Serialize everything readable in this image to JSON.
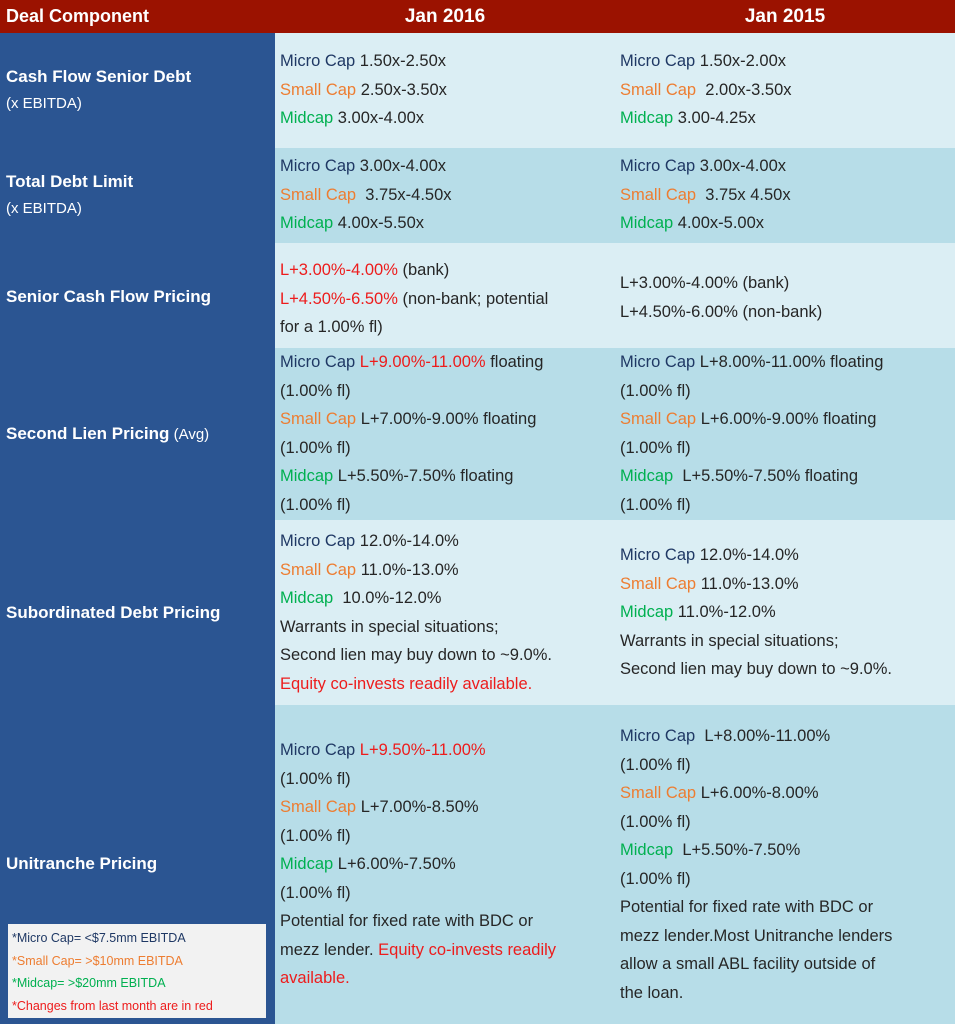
{
  "header": {
    "col0": "Deal Component",
    "col1": "Jan 2016",
    "col2": "Jan 2015"
  },
  "rows": {
    "cashflow": {
      "label": "Cash Flow Senior Debt",
      "sub": "(x EBITDA)",
      "y2016": {
        "micro_lbl": "Micro Cap",
        "micro_val": " 1.50x-2.50x",
        "small_lbl": "Small Cap",
        "small_val": " 2.50x-3.50x",
        "mid_lbl": "Midcap",
        "mid_val": " 3.00x-4.00x"
      },
      "y2015": {
        "micro_lbl": "Micro Cap",
        "micro_val": " 1.50x-2.00x",
        "small_lbl": "Small Cap",
        "small_val": "  2.00x-3.50x",
        "mid_lbl": "Midcap",
        "mid_val": " 3.00-4.25x"
      }
    },
    "totaldebt": {
      "label": "Total Debt Limit",
      "sub": "(x EBITDA)",
      "y2016": {
        "micro_lbl": "Micro Cap",
        "micro_val": " 3.00x-4.00x",
        "small_lbl": "Small Cap",
        "small_val": "  3.75x-4.50x",
        "mid_lbl": "Midcap",
        "mid_val": " 4.00x-5.50x"
      },
      "y2015": {
        "micro_lbl": "Micro Cap",
        "micro_val": " 3.00x-4.00x",
        "small_lbl": "Small Cap",
        "small_val": "  3.75x 4.50x",
        "mid_lbl": "Midcap",
        "mid_val": " 4.00x-5.00x"
      }
    },
    "senior": {
      "label": "Senior Cash Flow Pricing",
      "y2016": {
        "l1_red": "L+3.00%-4.00%",
        "l1_rest": " (bank)",
        "l2_red": "L+4.50%-6.50%",
        "l2_rest": " (non-bank; potential",
        "l3": "for a 1.00% fl)"
      },
      "y2015": {
        "l1": "L+3.00%-4.00% (bank)",
        "l2": "L+4.50%-6.00% (non-bank)"
      }
    },
    "secondlien": {
      "label": "Second Lien Pricing",
      "sub": " (Avg)",
      "y2016": {
        "micro_lbl": "Micro Cap",
        "micro_red": " L+9.00%-11.00%",
        "micro_rest": " floating",
        "fl": "(1.00% fl)",
        "small_lbl": "Small Cap",
        "small_val": " L+7.00%-9.00% floating",
        "mid_lbl": "Midcap",
        "mid_val": " L+5.50%-7.50% floating"
      },
      "y2015": {
        "micro_lbl": "Micro Cap",
        "micro_val": " L+8.00%-11.00% floating",
        "fl": "(1.00% fl)",
        "small_lbl": "Small Cap",
        "small_val": " L+6.00%-9.00% floating",
        "mid_lbl": "Midcap",
        "mid_val": "  L+5.50%-7.50% floating"
      }
    },
    "subdebt": {
      "label": "Subordinated Debt Pricing",
      "y2016": {
        "micro_lbl": "Micro Cap",
        "micro_val": " 12.0%-14.0%",
        "small_lbl": "Small Cap",
        "small_val": " 11.0%-13.0%",
        "mid_lbl": "Midcap",
        "mid_val": "  10.0%-12.0%",
        "l4": "Warrants in special situations;",
        "l5": "Second lien may buy down to ~9.0%.",
        "l6_red": "Equity co-invests readily available."
      },
      "y2015": {
        "micro_lbl": "Micro Cap",
        "micro_val": " 12.0%-14.0%",
        "small_lbl": "Small Cap",
        "small_val": " 11.0%-13.0%",
        "mid_lbl": "Midcap",
        "mid_val": " 11.0%-12.0%",
        "l4": "Warrants in special situations;",
        "l5": "Second lien may buy down to ~9.0%."
      }
    },
    "unitranche": {
      "label": "Unitranche Pricing",
      "y2016": {
        "micro_lbl": "Micro Cap",
        "micro_red": " L+9.50%-11.00%",
        "fl": "(1.00% fl)",
        "small_lbl": "Small Cap",
        "small_val": " L+7.00%-8.50%",
        "mid_lbl": "Midcap",
        "mid_val": " L+6.00%-7.50%",
        "l7": "Potential for fixed rate with BDC or",
        "l8a": "mezz lender. ",
        "l8_red": "Equity co-invests readily",
        "l9_red": "available."
      },
      "y2015": {
        "micro_lbl": "Micro Cap",
        "micro_val": "  L+8.00%-11.00%",
        "fl": "(1.00% fl)",
        "small_lbl": "Small Cap",
        "small_val": " L+6.00%-8.00%",
        "mid_lbl": "Midcap",
        "mid_val": "  L+5.50%-7.50%",
        "l7": "Potential for fixed rate with BDC or",
        "l8": "mezz lender.Most Unitranche lenders",
        "l9": "allow a small ABL facility outside of",
        "l10": "the loan."
      }
    }
  },
  "legend": {
    "micro": "*Micro Cap= <$7.5mm EBITDA",
    "small": "*Small Cap= >$10mm EBITDA",
    "mid": "*Midcap= >$20mm EBITDA",
    "red": "*Changes from last month are in red"
  },
  "colors": {
    "header": "#9b1200",
    "left": "#2b5592",
    "light": "#dbeef4",
    "dark": "#b7dde8",
    "micro": "#1f3864",
    "small": "#ed7d31",
    "mid": "#00b050",
    "red": "#ed1c1c"
  }
}
